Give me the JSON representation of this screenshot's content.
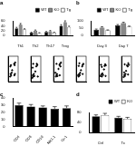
{
  "chart_data": [
    {
      "type": "bar",
      "title": "a",
      "categories": [
        "Th1",
        "Th2",
        "Th17",
        "Treg"
      ],
      "series": [
        {
          "name": "WT",
          "color": "#000000",
          "values": [
            30,
            12,
            15,
            40
          ],
          "errors": [
            4,
            2,
            2,
            5
          ]
        },
        {
          "name": "KO",
          "color": "#888888",
          "values": [
            45,
            20,
            18,
            55
          ],
          "errors": [
            5,
            3,
            3,
            6
          ]
        },
        {
          "name": "Tg",
          "color": "#ffffff",
          "values": [
            25,
            10,
            12,
            35
          ],
          "errors": [
            3,
            2,
            2,
            4
          ]
        }
      ],
      "ylim": [
        0,
        60
      ],
      "yticks": [
        0,
        20,
        40,
        60
      ],
      "legend": "upper right"
    },
    {
      "type": "bar",
      "title": "b",
      "categories": [
        "Day 3",
        "Day 7"
      ],
      "series": [
        {
          "name": "WT",
          "color": "#000000",
          "values": [
            40,
            70
          ],
          "errors": [
            5,
            6
          ]
        },
        {
          "name": "KO",
          "color": "#888888",
          "values": [
            55,
            85
          ],
          "errors": [
            6,
            7
          ]
        },
        {
          "name": "Tg",
          "color": "#ffffff",
          "values": [
            35,
            60
          ],
          "errors": [
            4,
            5
          ]
        }
      ],
      "ylim": [
        0,
        100
      ],
      "yticks": [
        0,
        50,
        100
      ],
      "legend": "upper right"
    },
    {
      "type": "scatter",
      "x": [
        20,
        25,
        30,
        35,
        60,
        65,
        70,
        22,
        28,
        62,
        68,
        40
      ],
      "values": [
        20,
        30,
        25,
        35,
        70,
        65,
        75,
        60,
        65,
        25,
        30,
        45
      ],
      "color": "#000000",
      "xlim": [
        0,
        100
      ],
      "ylim": [
        0,
        100
      ],
      "tick_labels": false
    },
    {
      "type": "scatter",
      "x": [
        15,
        20,
        25,
        30,
        35,
        55,
        60,
        65,
        18,
        24,
        70,
        45
      ],
      "values": [
        15,
        25,
        20,
        30,
        22,
        60,
        70,
        65,
        55,
        70,
        20,
        40
      ],
      "color": "#000000",
      "xlim": [
        0,
        100
      ],
      "ylim": [
        0,
        100
      ],
      "tick_labels": false
    },
    {
      "type": "scatter",
      "x": [
        25,
        30,
        35,
        40,
        20,
        60,
        65,
        70,
        75,
        30,
        62,
        50
      ],
      "values": [
        20,
        25,
        30,
        22,
        35,
        65,
        70,
        60,
        75,
        70,
        25,
        50
      ],
      "color": "#000000",
      "xlim": [
        0,
        100
      ],
      "ylim": [
        0,
        100
      ],
      "tick_labels": false
    },
    {
      "type": "scatter",
      "x": [
        20,
        25,
        30,
        35,
        40,
        60,
        66,
        72,
        26,
        32,
        65,
        48
      ],
      "values": [
        25,
        20,
        30,
        25,
        35,
        60,
        66,
        70,
        62,
        72,
        30,
        45
      ],
      "color": "#000000",
      "xlim": [
        0,
        100
      ],
      "ylim": [
        0,
        100
      ],
      "tick_labels": false
    },
    {
      "type": "scatter",
      "x": [
        18,
        24,
        30,
        36,
        42,
        58,
        64,
        70,
        22,
        30,
        68,
        52
      ],
      "values": [
        22,
        28,
        20,
        32,
        26,
        62,
        68,
        64,
        66,
        58,
        22,
        48
      ],
      "color": "#000000",
      "xlim": [
        0,
        100
      ],
      "ylim": [
        0,
        100
      ],
      "tick_labels": false
    },
    {
      "type": "scatter",
      "x": [
        22,
        28,
        34,
        40,
        26,
        56,
        62,
        68,
        74,
        32,
        66,
        46
      ],
      "values": [
        18,
        26,
        22,
        30,
        36,
        64,
        60,
        72,
        66,
        68,
        28,
        42
      ],
      "color": "#000000",
      "xlim": [
        0,
        100
      ],
      "ylim": [
        0,
        100
      ],
      "tick_labels": false
    },
    {
      "type": "bar",
      "title": "c",
      "categories": [
        "CD4",
        "CD8",
        "CD19",
        "NK1.1",
        "Gr-1"
      ],
      "values": [
        30,
        28,
        27,
        25,
        26
      ],
      "errors": [
        3,
        3,
        2,
        3,
        3
      ],
      "color": "#000000",
      "ylim": [
        0,
        40
      ],
      "yticks": [
        0,
        10,
        20,
        30,
        40
      ]
    },
    {
      "type": "bar",
      "title": "d",
      "categories": [
        "Ctrl",
        "Tx"
      ],
      "series": [
        {
          "name": "WT",
          "color": "#000000",
          "values": [
            65,
            60
          ],
          "errors": [
            6,
            5
          ]
        },
        {
          "name": "KO",
          "color": "#ffffff",
          "values": [
            70,
            55
          ],
          "errors": [
            7,
            6
          ]
        }
      ],
      "ylim": [
        0,
        80
      ],
      "yticks": [
        0,
        40,
        80
      ],
      "legend": "upper right"
    }
  ]
}
